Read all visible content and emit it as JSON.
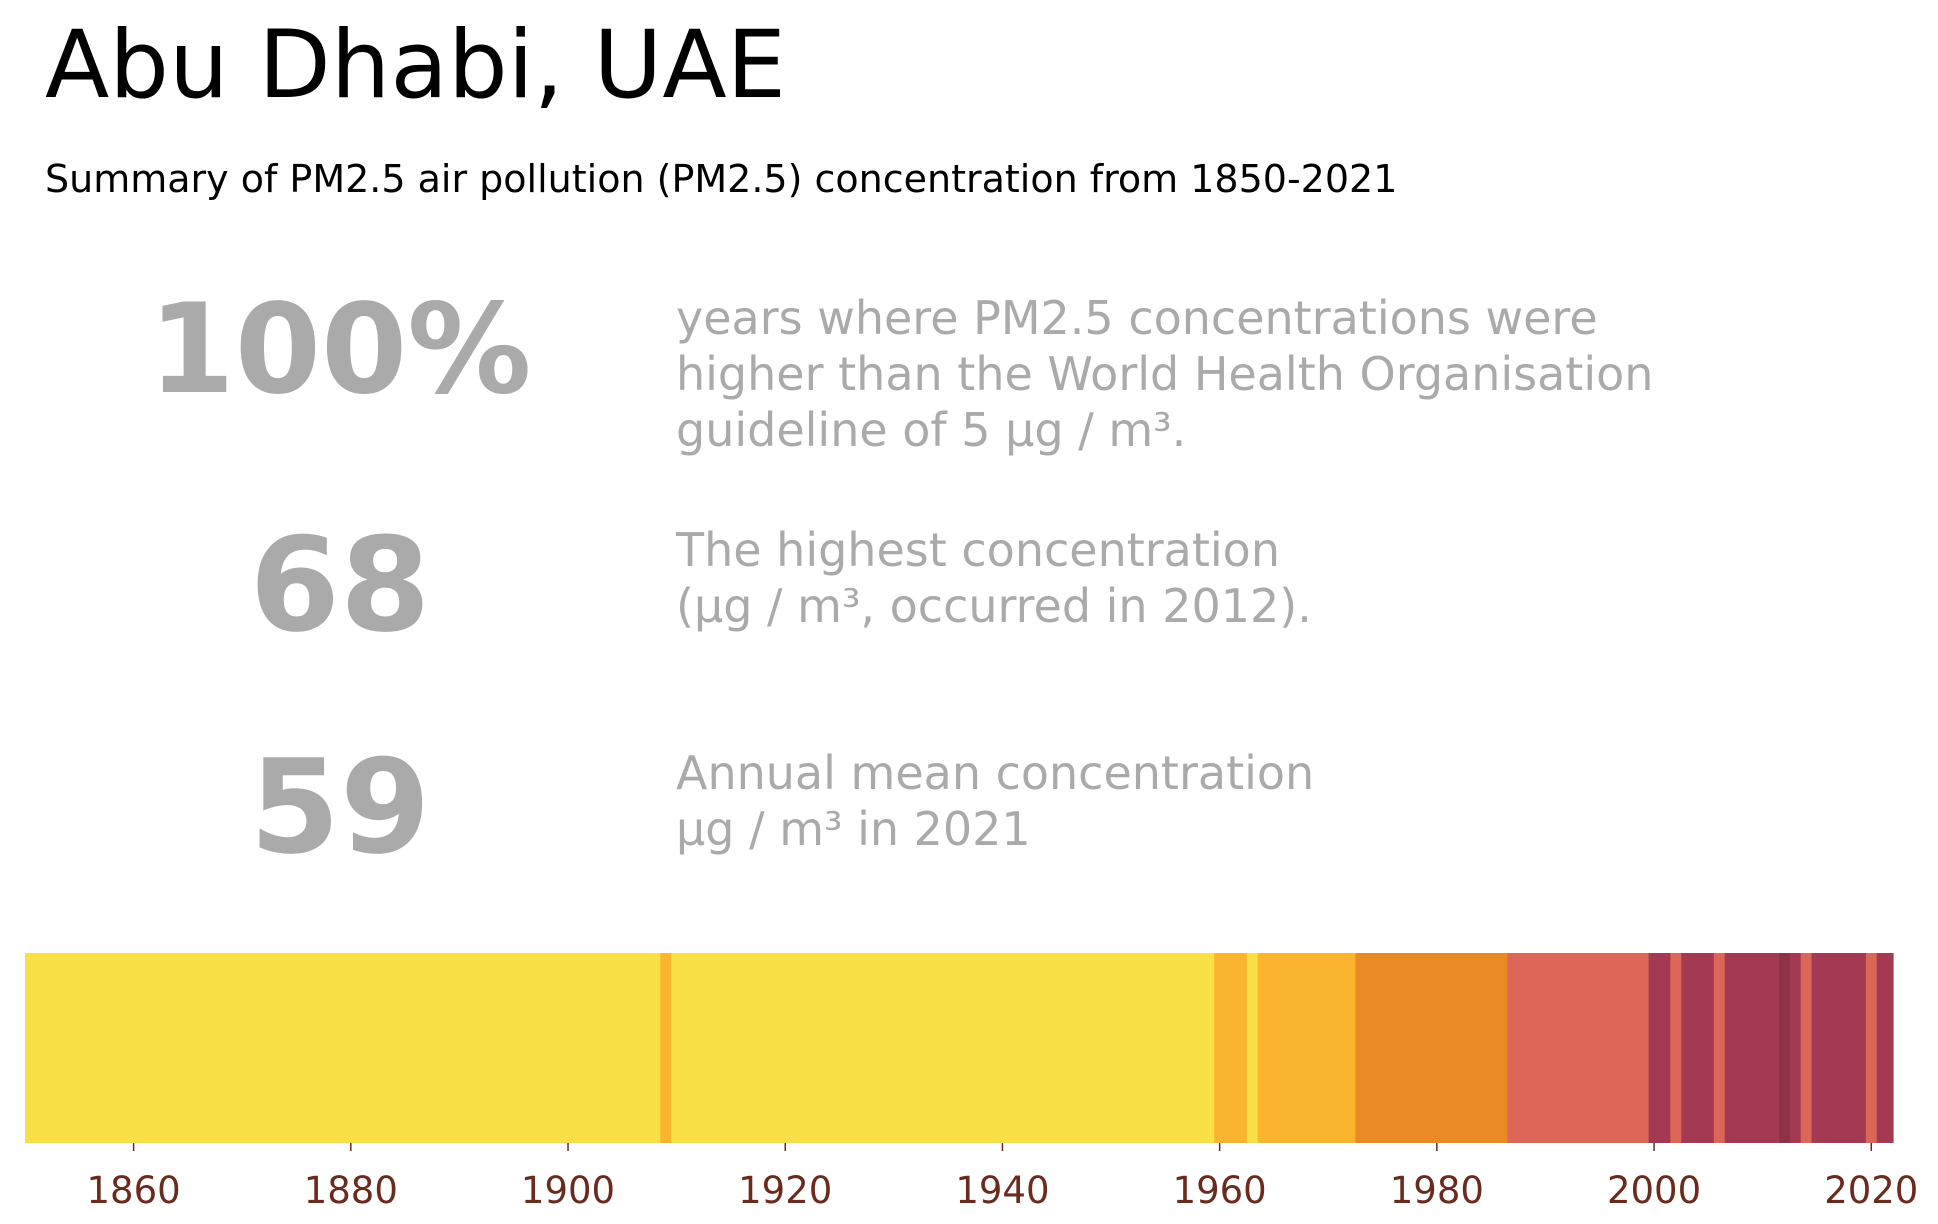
{
  "title": "Abu Dhabi, UAE",
  "subtitle": "Summary of PM2.5 air pollution (PM2.5) concentration from 1850-2021",
  "stats": [
    {
      "value": "100%",
      "lines": [
        "years where PM2.5 concentrations were",
        "higher than the World Health Organisation",
        "guideline of 5 µg / m³."
      ]
    },
    {
      "value": "68",
      "lines": [
        "The highest concentration",
        "(µg / m³, occurred in 2012)."
      ]
    },
    {
      "value": "59",
      "lines": [
        "Annual mean concentration",
        "µg / m³ in 2021"
      ]
    }
  ],
  "colors": {
    "text_grey": "#aaaaaa",
    "tick_label": "#6b2a1e"
  },
  "chart_data": {
    "type": "bar",
    "description_of_encoding": "",
    "x_range": [
      1850,
      2022
    ],
    "x_ticks": [
      1860,
      1880,
      1900,
      1920,
      1940,
      1960,
      1980,
      2000,
      2020
    ],
    "segments": [
      {
        "start": 1850,
        "end": 1908.5,
        "color": "#f9e047"
      },
      {
        "start": 1908.5,
        "end": 1909.5,
        "color": "#fbb42d"
      },
      {
        "start": 1909.5,
        "end": 1959.5,
        "color": "#f9e047"
      },
      {
        "start": 1959.5,
        "end": 1962.5,
        "color": "#fbb42d"
      },
      {
        "start": 1962.5,
        "end": 1963.5,
        "color": "#f9e047"
      },
      {
        "start": 1963.5,
        "end": 1972.5,
        "color": "#fbb42d"
      },
      {
        "start": 1972.5,
        "end": 1986.5,
        "color": "#e98a27"
      },
      {
        "start": 1986.5,
        "end": 1999.5,
        "color": "#dc6758"
      },
      {
        "start": 1999.5,
        "end": 2001.5,
        "color": "#a33a52"
      },
      {
        "start": 2001.5,
        "end": 2002.5,
        "color": "#dc6758"
      },
      {
        "start": 2002.5,
        "end": 2005.5,
        "color": "#a33a52"
      },
      {
        "start": 2005.5,
        "end": 2006.5,
        "color": "#dc6758"
      },
      {
        "start": 2006.5,
        "end": 2011.5,
        "color": "#a33a52"
      },
      {
        "start": 2011.5,
        "end": 2012.5,
        "color": "#8c3446"
      },
      {
        "start": 2012.5,
        "end": 2013.5,
        "color": "#a33a52"
      },
      {
        "start": 2013.5,
        "end": 2014.5,
        "color": "#dc6758"
      },
      {
        "start": 2014.5,
        "end": 2019.5,
        "color": "#a33a52"
      },
      {
        "start": 2019.5,
        "end": 2020.5,
        "color": "#dc6758"
      },
      {
        "start": 2020.5,
        "end": 2022,
        "color": "#a33a52"
      }
    ]
  }
}
